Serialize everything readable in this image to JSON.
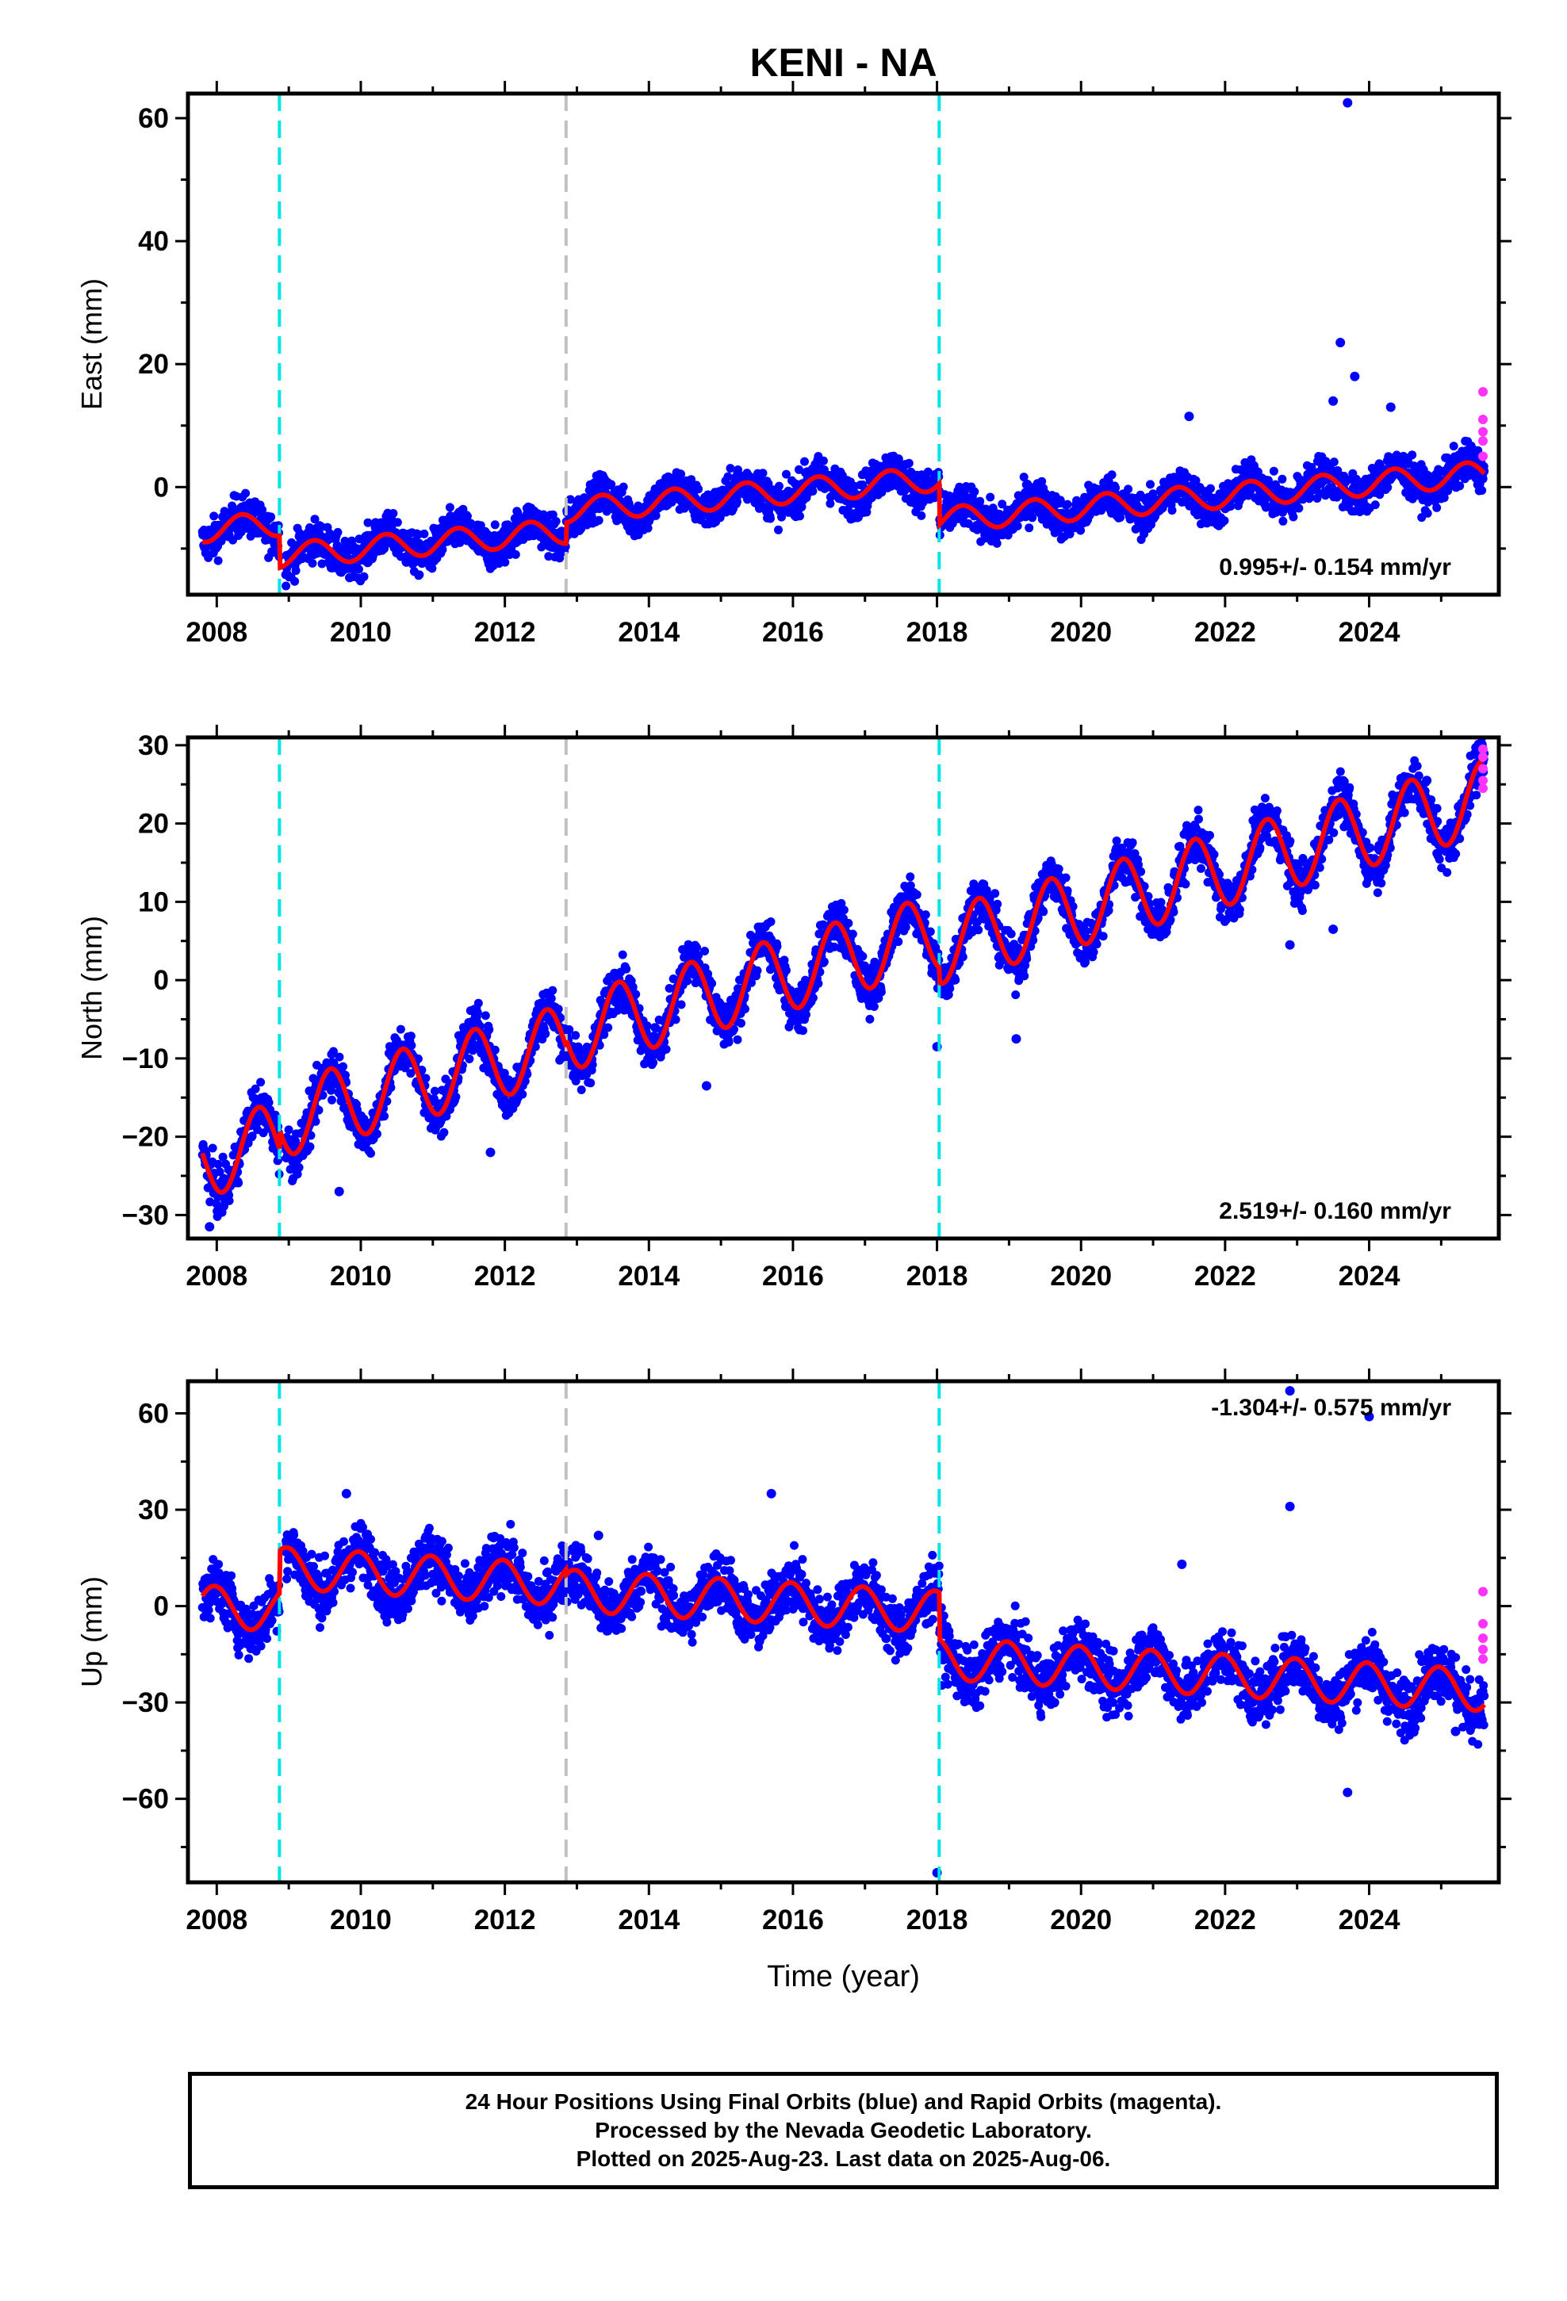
{
  "title": "KENI - NA",
  "xlabel": "Time (year)",
  "colors": {
    "final_orbits": "#0000ff",
    "rapid_orbits": "#ff33ff",
    "model": "#ff0000",
    "equipment_change": "#00e5e5",
    "other_event": "#c0c0c0"
  },
  "caption": {
    "line1": "24 Hour Positions Using Final Orbits (blue) and Rapid Orbits (magenta).",
    "line2": "Processed by the Nevada Geodetic Laboratory.",
    "line3": "Plotted on 2025-Aug-23. Last data on 2025-Aug-06."
  },
  "chart_data": [
    {
      "type": "scatter",
      "component": "east",
      "ylabel": "East (mm)",
      "rate_label": "0.995+/- 0.154 mm/yr",
      "rate_position": "bottom-right",
      "xlim": [
        2007.6,
        2025.8
      ],
      "ylim": [
        -17.5,
        64
      ],
      "xticks": [
        2008,
        2010,
        2012,
        2014,
        2016,
        2018,
        2020,
        2022,
        2024
      ],
      "yticks": [
        0,
        20,
        40,
        60
      ],
      "event_lines": {
        "equipment_change": [
          2008.87,
          2018.03
        ],
        "other_event": [
          2012.85
        ]
      },
      "model": {
        "segments": [
          [
            2007.8,
            2008.87,
            -7.0
          ],
          [
            2008.87,
            2012.85,
            -12.2
          ],
          [
            2012.85,
            2018.03,
            -8.8
          ],
          [
            2018.03,
            2025.6,
            -15.5
          ]
        ],
        "rate": 0.995,
        "annual_amplitude": 2.0,
        "annual_phase": 0.1,
        "x_start": 2007.8,
        "x_end": 2025.6
      },
      "scatter_noise": 1.6,
      "outliers": [
        [
          2023.7,
          62.5
        ],
        [
          2023.6,
          23.5
        ],
        [
          2023.8,
          18
        ],
        [
          2023.5,
          14
        ],
        [
          2021.5,
          11.5
        ],
        [
          2024.3,
          13
        ]
      ],
      "rapid": [
        [
          2025.58,
          15.5
        ],
        [
          2025.58,
          11.0
        ],
        [
          2025.58,
          9.0
        ],
        [
          2025.58,
          7.5
        ],
        [
          2025.58,
          5.0
        ]
      ]
    },
    {
      "type": "scatter",
      "component": "north",
      "ylabel": "North (mm)",
      "rate_label": "2.519+/- 0.160 mm/yr",
      "rate_position": "bottom-right",
      "xlim": [
        2007.6,
        2025.8
      ],
      "ylim": [
        -33,
        31
      ],
      "xticks": [
        2008,
        2010,
        2012,
        2014,
        2016,
        2018,
        2020,
        2022,
        2024
      ],
      "yticks": [
        -30,
        -20,
        -10,
        0,
        10,
        20,
        30
      ],
      "event_lines": {
        "equipment_change": [
          2008.87,
          2018.03
        ],
        "other_event": [
          2012.85
        ]
      },
      "model": {
        "segments": [
          [
            2007.8,
            2008.87,
            -23.0
          ],
          [
            2008.87,
            2012.85,
            -20.6
          ],
          [
            2012.85,
            2018.03,
            -19.6
          ],
          [
            2018.03,
            2025.6,
            -21.5
          ]
        ],
        "rate": 2.519,
        "annual_amplitude": 4.8,
        "annual_phase": 0.33,
        "x_start": 2007.8,
        "x_end": 2025.6
      },
      "scatter_noise": 1.5,
      "outliers": [
        [
          2007.9,
          -31.5
        ],
        [
          2009.7,
          -27
        ],
        [
          2011.8,
          -22
        ],
        [
          2018.0,
          -8.5
        ],
        [
          2019.1,
          -7.5
        ],
        [
          2023.5,
          6.5
        ],
        [
          2022.9,
          4.5
        ],
        [
          2024.8,
          25.5
        ],
        [
          2014.8,
          -13.5
        ]
      ],
      "rapid": [
        [
          2025.58,
          29.5
        ],
        [
          2025.58,
          28.5
        ],
        [
          2025.58,
          27.0
        ],
        [
          2025.58,
          25.5
        ],
        [
          2025.58,
          24.5
        ]
      ]
    },
    {
      "type": "scatter",
      "component": "up",
      "ylabel": "Up (mm)",
      "rate_label": "-1.304+/- 0.575 mm/yr",
      "rate_position": "top-right",
      "xlim": [
        2007.6,
        2025.8
      ],
      "ylim": [
        -86,
        70
      ],
      "xticks": [
        2008,
        2010,
        2012,
        2014,
        2016,
        2018,
        2020,
        2022,
        2024
      ],
      "yticks": [
        -60,
        -30,
        0,
        30,
        60
      ],
      "event_lines": {
        "equipment_change": [
          2008.87,
          2018.03
        ],
        "other_event": [
          2012.85
        ]
      },
      "model": {
        "segments": [
          [
            2007.8,
            2008.87,
            0.0
          ],
          [
            2008.87,
            2012.85,
            13.3
          ],
          [
            2012.85,
            2018.03,
            11.5
          ],
          [
            2018.03,
            2025.6,
            -3.0
          ]
        ],
        "rate": -1.304,
        "annual_amplitude": 6.5,
        "annual_phase": 0.72,
        "x_start": 2007.8,
        "x_end": 2025.6
      },
      "scatter_noise": 4.5,
      "outliers": [
        [
          2023.7,
          -58
        ],
        [
          2018.0,
          -83
        ],
        [
          2022.9,
          67
        ],
        [
          2024.0,
          59
        ],
        [
          2022.9,
          31
        ],
        [
          2025.2,
          -39
        ],
        [
          2015.7,
          35
        ],
        [
          2022.6,
          -27
        ],
        [
          2021.4,
          13
        ],
        [
          2009.8,
          35
        ],
        [
          2013.3,
          22
        ]
      ],
      "rapid": [
        [
          2025.58,
          4.5
        ],
        [
          2025.58,
          -5.5
        ],
        [
          2025.58,
          -10.0
        ],
        [
          2025.58,
          -13.5
        ],
        [
          2025.58,
          -16.5
        ]
      ]
    }
  ]
}
